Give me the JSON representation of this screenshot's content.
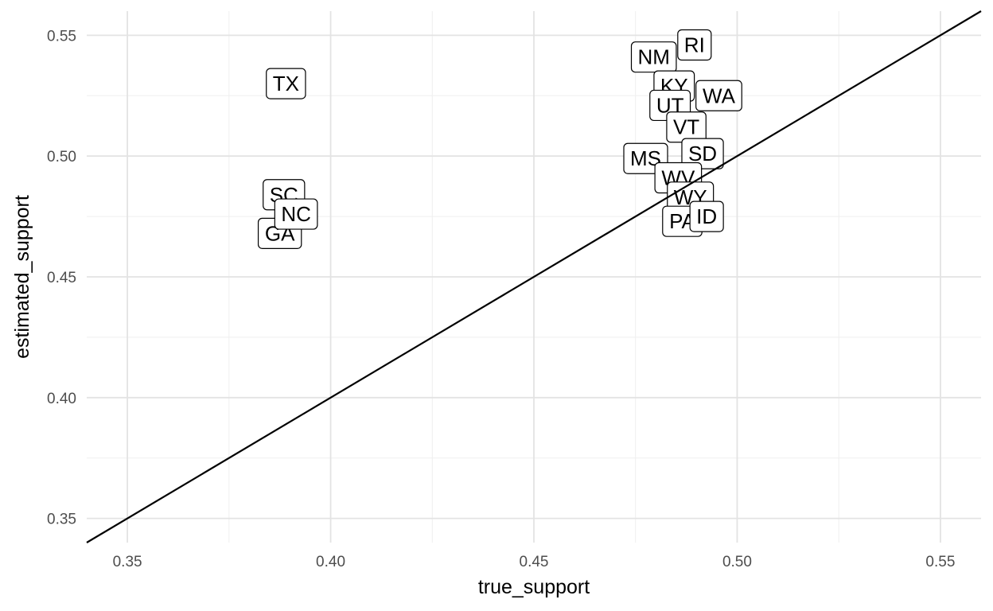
{
  "chart_data": {
    "type": "scatter",
    "title": "",
    "xlabel": "true_support",
    "ylabel": "estimated_support",
    "xlim": [
      0.34,
      0.56
    ],
    "ylim": [
      0.34,
      0.56
    ],
    "x_ticks": [
      "0.35",
      "0.40",
      "0.45",
      "0.50",
      "0.55"
    ],
    "y_ticks": [
      "0.35",
      "0.40",
      "0.45",
      "0.50",
      "0.55"
    ],
    "grid": true,
    "reference_line": {
      "slope": 1,
      "intercept": 0
    },
    "point_style": "label",
    "colors": {
      "text": "#000000",
      "box_fill": "#ffffff",
      "box_stroke": "#000000",
      "grid": "#e3e3e3"
    },
    "points": [
      {
        "label": "TX",
        "x": 0.389,
        "y": 0.53
      },
      {
        "label": "SC",
        "x": 0.3885,
        "y": 0.484
      },
      {
        "label": "GA",
        "x": 0.3875,
        "y": 0.468
      },
      {
        "label": "NC",
        "x": 0.3915,
        "y": 0.476
      },
      {
        "label": "NM",
        "x": 0.4795,
        "y": 0.541
      },
      {
        "label": "RI",
        "x": 0.4895,
        "y": 0.546
      },
      {
        "label": "KY",
        "x": 0.4845,
        "y": 0.529
      },
      {
        "label": "WA",
        "x": 0.4955,
        "y": 0.525
      },
      {
        "label": "UT",
        "x": 0.4835,
        "y": 0.521
      },
      {
        "label": "VT",
        "x": 0.4875,
        "y": 0.512
      },
      {
        "label": "MS",
        "x": 0.4775,
        "y": 0.499
      },
      {
        "label": "SD",
        "x": 0.4915,
        "y": 0.501
      },
      {
        "label": "WV",
        "x": 0.4855,
        "y": 0.491
      },
      {
        "label": "WY",
        "x": 0.4885,
        "y": 0.483
      },
      {
        "label": "PA",
        "x": 0.4865,
        "y": 0.473
      },
      {
        "label": "ID",
        "x": 0.4925,
        "y": 0.475
      }
    ]
  }
}
